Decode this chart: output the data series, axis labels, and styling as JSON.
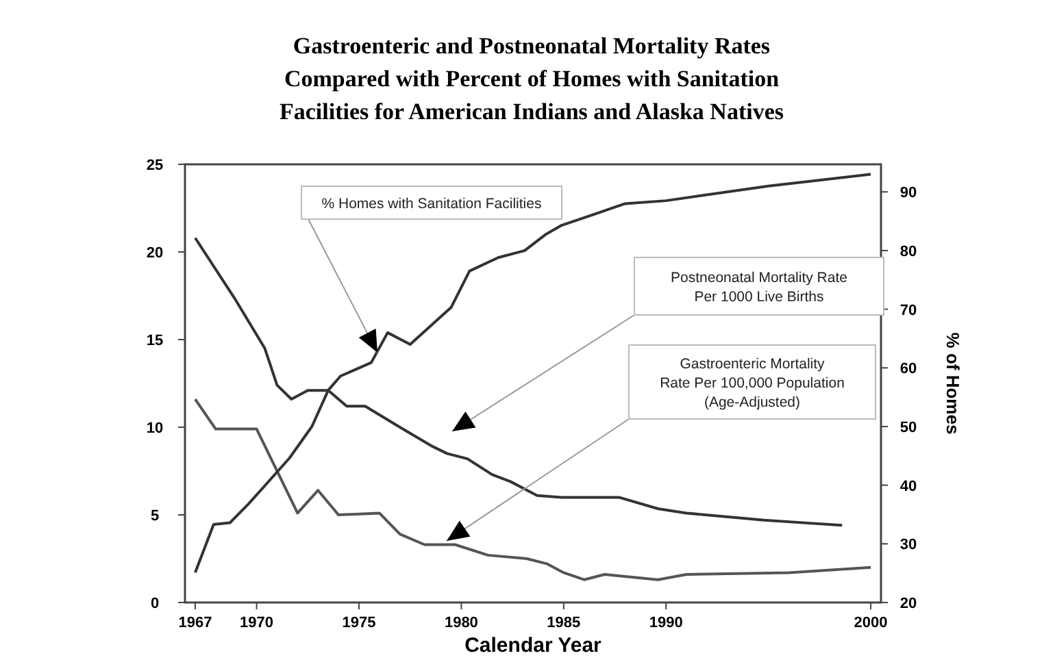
{
  "chart_data": {
    "type": "line",
    "title": "Gastroenteric and Postneonatal Mortality Rates Compared with Percent of Homes with Sanitation Facilities for American Indians and Alaska Natives",
    "xlabel": "Calendar Year",
    "y2label": "% of Homes",
    "xlim": [
      1966.5,
      2000.5
    ],
    "xticks": [
      1967,
      1970,
      1975,
      1980,
      1985,
      1990,
      2000
    ],
    "ylim": [
      0,
      25
    ],
    "yticks": [
      0,
      5,
      10,
      15,
      20,
      25
    ],
    "y2lim": [
      20,
      94.7
    ],
    "y2ticks": [
      20,
      30,
      40,
      50,
      60,
      70,
      80,
      90
    ],
    "grid": false,
    "marker": "none",
    "line_style": "solid",
    "series": [
      {
        "color": "#333333",
        "x": [
          1967,
          1968.9,
          1970.4,
          1971,
          1971.7,
          1972.5,
          1973.5,
          1974.4,
          1975.3,
          1977,
          1978.6,
          1979.3,
          1980.3,
          1981.5,
          1982.4,
          1983.7,
          1984.9,
          1987.7,
          1989.6,
          1991,
          1994.8,
          1998.6
        ],
        "values": [
          20.8,
          17.4,
          14.5,
          12.4,
          11.6,
          12.1,
          12.1,
          11.2,
          11.2,
          10.0,
          8.9,
          8.5,
          8.2,
          7.3,
          6.9,
          6.1,
          6.0,
          6.0,
          5.35,
          5.1,
          4.7,
          4.4
        ]
      },
      {
        "color": "#555555",
        "x": [
          1967,
          1968,
          1970,
          1972,
          1973,
          1974,
          1976,
          1977,
          1978.2,
          1979.7,
          1981.3,
          1983.2,
          1984.2,
          1985,
          1986,
          1987,
          1989.6,
          1991,
          1996,
          2000
        ],
        "values": [
          11.6,
          9.9,
          9.9,
          5.1,
          6.4,
          5.0,
          5.1,
          3.9,
          3.3,
          3.3,
          2.7,
          2.5,
          2.2,
          1.7,
          1.3,
          1.6,
          1.3,
          1.6,
          1.7,
          2.0
        ]
      },
      {
        "color": "#333333",
        "axis": "y2",
        "x": [
          1967,
          1967.9,
          1968.7,
          1969.6,
          1970.4,
          1971.6,
          1972.7,
          1973.5,
          1974.1,
          1975.6,
          1976.4,
          1977.5,
          1979.5,
          1980.4,
          1981.8,
          1983.1,
          1984.1,
          1984.9,
          1986.5,
          1988,
          1990,
          1995,
          2000
        ],
        "values": [
          25.1,
          33.3,
          33.6,
          36.8,
          39.9,
          44.6,
          50.0,
          56.2,
          58.6,
          60.9,
          66.0,
          64.0,
          70.3,
          76.5,
          78.8,
          80.0,
          82.7,
          84.3,
          86.2,
          88.0,
          88.5,
          91.0,
          93.0
        ]
      }
    ],
    "annotations": [
      {
        "text": "% Homes with Sanitation Facilities",
        "x": 1975.9,
        "y": 14.26
      },
      "Postneonatal Mortality Rate\nPer 1000 Live Births",
      "Gastroenteric Mortality\nRate Per 100,000 Population\n(Age-Adjusted)"
    ]
  }
}
